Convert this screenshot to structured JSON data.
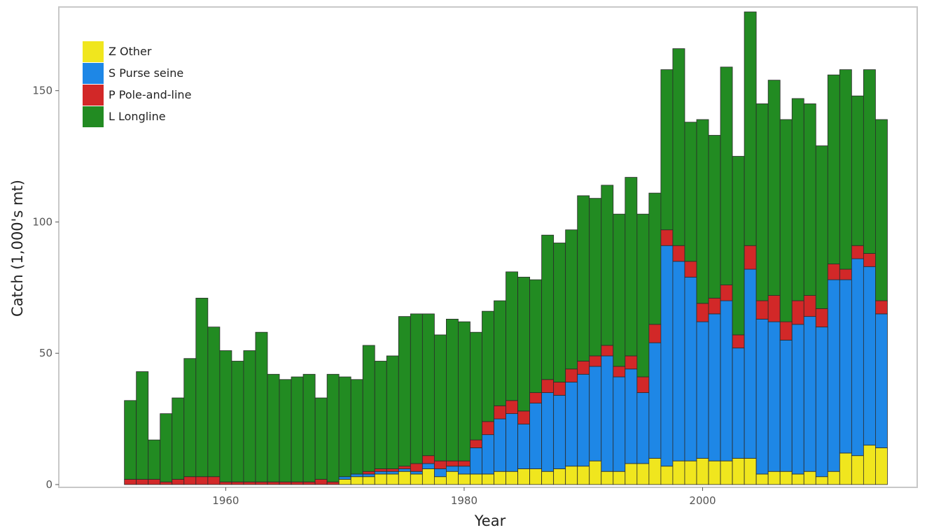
{
  "chart_data": {
    "type": "bar",
    "stacked": true,
    "xlabel": "Year",
    "ylabel": "Catch (1,000's mt)",
    "x": [
      1952,
      1953,
      1954,
      1955,
      1956,
      1957,
      1958,
      1959,
      1960,
      1961,
      1962,
      1963,
      1964,
      1965,
      1966,
      1967,
      1968,
      1969,
      1970,
      1971,
      1972,
      1973,
      1974,
      1975,
      1976,
      1977,
      1978,
      1979,
      1980,
      1981,
      1982,
      1983,
      1984,
      1985,
      1986,
      1987,
      1988,
      1989,
      1990,
      1991,
      1992,
      1993,
      1994,
      1995,
      1996,
      1997,
      1998,
      1999,
      2000,
      2001,
      2002,
      2003,
      2004,
      2005,
      2006,
      2007,
      2008,
      2009,
      2010,
      2011,
      2012,
      2013,
      2014,
      2015
    ],
    "xlim": [
      1946,
      2018
    ],
    "x_ticks": [
      1960,
      1980,
      2000
    ],
    "ylim": [
      0,
      180
    ],
    "y_ticks": [
      0,
      50,
      100,
      150
    ],
    "grid": false,
    "legend_position": "top-left",
    "series": [
      {
        "name": "Z Other",
        "color": "#f0e61e",
        "values": [
          0,
          0,
          0,
          0,
          0,
          0,
          0,
          0,
          0,
          0,
          0,
          0,
          0,
          0,
          0,
          0,
          0,
          0,
          2,
          3,
          3,
          4,
          4,
          5,
          4,
          6,
          3,
          5,
          4,
          4,
          4,
          5,
          5,
          6,
          6,
          5,
          6,
          7,
          7,
          9,
          5,
          5,
          8,
          8,
          10,
          7,
          9,
          9,
          10,
          9,
          9,
          10,
          10,
          4,
          5,
          5,
          4,
          5,
          3,
          5,
          12,
          11,
          15,
          14
        ]
      },
      {
        "name": "S Purse seine",
        "color": "#1e87e6",
        "values": [
          0,
          0,
          0,
          0,
          0,
          0,
          0,
          0,
          0,
          0,
          0,
          0,
          0,
          0,
          0,
          0,
          0,
          0,
          1,
          1,
          1,
          1,
          1,
          1,
          1,
          2,
          3,
          2,
          3,
          10,
          15,
          20,
          22,
          17,
          25,
          30,
          28,
          32,
          35,
          36,
          44,
          36,
          36,
          27,
          44,
          84,
          76,
          70,
          52,
          56,
          61,
          42,
          72,
          59,
          57,
          50,
          57,
          59,
          57,
          73,
          66,
          75,
          68,
          51
        ]
      },
      {
        "name": "P Pole-and-line",
        "color": "#d22828",
        "values": [
          2,
          2,
          2,
          1,
          2,
          3,
          3,
          3,
          1,
          1,
          1,
          1,
          1,
          1,
          1,
          1,
          2,
          1,
          0,
          0,
          1,
          1,
          1,
          1,
          3,
          3,
          3,
          2,
          2,
          3,
          5,
          5,
          5,
          5,
          4,
          5,
          5,
          5,
          5,
          4,
          4,
          4,
          5,
          6,
          7,
          6,
          6,
          6,
          7,
          6,
          6,
          5,
          9,
          7,
          10,
          7,
          9,
          8,
          7,
          6,
          4,
          5,
          5,
          5
        ]
      },
      {
        "name": "L Longline",
        "color": "#228b22",
        "values": [
          30,
          41,
          15,
          26,
          31,
          45,
          68,
          57,
          50,
          46,
          50,
          57,
          41,
          39,
          40,
          41,
          31,
          41,
          38,
          36,
          48,
          41,
          43,
          57,
          57,
          54,
          48,
          54,
          53,
          41,
          42,
          40,
          49,
          51,
          43,
          55,
          53,
          53,
          63,
          60,
          61,
          58,
          68,
          62,
          50,
          61,
          75,
          53,
          70,
          62,
          83,
          68,
          89,
          75,
          82,
          77,
          77,
          73,
          62,
          72,
          76,
          57,
          70,
          69
        ]
      }
    ]
  }
}
